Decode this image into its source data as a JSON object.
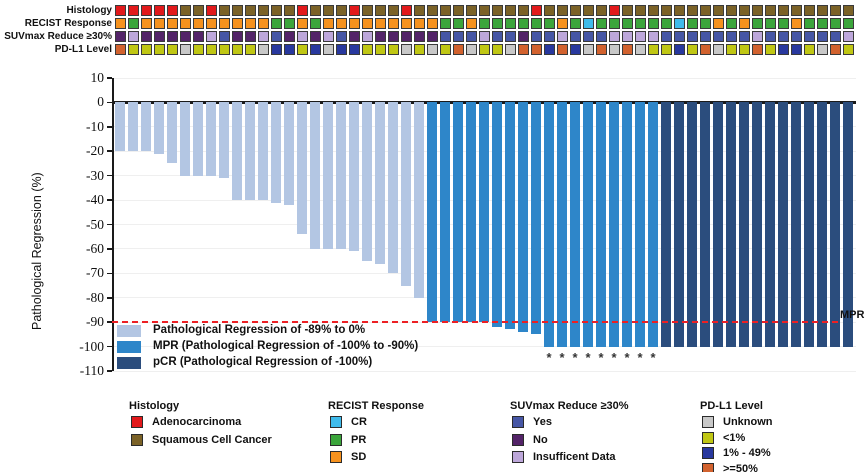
{
  "figure": {
    "axis_title": "Pathological Regression (%)",
    "mpr_label": "MPR",
    "track_labels": [
      "Histology",
      "RECIST Response",
      "SUVmax Reduce ≥30%",
      "PD-L1 Level"
    ],
    "inner_legend": [
      {
        "key": "light",
        "label": "Pathological Regression of -89% to 0%"
      },
      {
        "key": "mpr",
        "label": "MPR (Pathological Regression of -100% to -90%)"
      },
      {
        "key": "pcr",
        "label": "pCR (Pathological Regression of -100%)"
      }
    ],
    "bottom_legends": [
      {
        "title": "Histology",
        "items": [
          {
            "color": "#E2191B",
            "label": "Adenocarcinoma"
          },
          {
            "color": "#7B6227",
            "label": "Squamous Cell Cancer"
          }
        ]
      },
      {
        "title": "RECIST Response",
        "items": [
          {
            "color": "#3FBBEB",
            "label": "CR"
          },
          {
            "color": "#3BA53B",
            "label": "PR"
          },
          {
            "color": "#F6921E",
            "label": "SD"
          }
        ]
      },
      {
        "title": "SUVmax Reduce ≥30%",
        "items": [
          {
            "color": "#4656A5",
            "label": "Yes"
          },
          {
            "color": "#532368",
            "label": "No"
          },
          {
            "color": "#BDA7DA",
            "label": "Insufficent Data"
          }
        ]
      },
      {
        "title": "PD-L1 Level",
        "items": [
          {
            "color": "#C8C8C8",
            "label": "Unknown"
          },
          {
            "color": "#C0C714",
            "label": "<1%"
          },
          {
            "color": "#28389E",
            "label": "1% - 49%"
          },
          {
            "color": "#D2622E",
            "label": ">=50%"
          }
        ]
      }
    ]
  },
  "chart_data": {
    "type": "bar",
    "subtype": "waterfall",
    "title": "",
    "xlabel": "",
    "ylabel": "Pathological Regression (%)",
    "ylim": [
      -110,
      10
    ],
    "yticks": [
      10,
      0,
      -10,
      -20,
      -30,
      -40,
      -50,
      -60,
      -70,
      -80,
      -90,
      -100,
      -110
    ],
    "grid": "faint-horizontal",
    "reference_line": {
      "y": -90,
      "label": "MPR",
      "style": "red-dashed"
    },
    "asterisk_note": "asterisks mark MPR bars reaching -100%",
    "bar_colors": {
      "light": "#B3C6E3",
      "mpr": "#2E86C9",
      "pcr": "#2B4D7D"
    },
    "group_labels": {
      "light": "Pathological Regression of -89% to 0%",
      "mpr": "MPR (Pathological Regression of -100% to -90%)",
      "pcr": "pCR (Pathological Regression of -100%)"
    },
    "codes": {
      "h": {
        "A": "Adenocarcinoma",
        "S": "Squamous Cell Cancer"
      },
      "r": {
        "CR": "CR",
        "PR": "PR",
        "SD": "SD"
      },
      "s": {
        "Y": "Yes",
        "N": "No",
        "I": "Insufficent Data"
      },
      "p": {
        "U": "Unknown",
        "L": "<1%",
        "M": "1% - 49%",
        "H": ">=50%"
      }
    },
    "track_colors": {
      "h": {
        "A": "#E2191B",
        "S": "#7B6227"
      },
      "r": {
        "CR": "#3FBBEB",
        "PR": "#3BA53B",
        "SD": "#F6921E"
      },
      "s": {
        "Y": "#4656A5",
        "N": "#532368",
        "I": "#BDA7DA"
      },
      "p": {
        "U": "#C8C8C8",
        "L": "#C0C714",
        "M": "#28389E",
        "H": "#D2622E"
      }
    },
    "patients": [
      {
        "v": -20,
        "g": "light",
        "star": false,
        "h": "A",
        "r": "SD",
        "s": "N",
        "p": "H"
      },
      {
        "v": -20,
        "g": "light",
        "star": false,
        "h": "A",
        "r": "PR",
        "s": "I",
        "p": "L"
      },
      {
        "v": -20,
        "g": "light",
        "star": false,
        "h": "A",
        "r": "SD",
        "s": "N",
        "p": "L"
      },
      {
        "v": -21,
        "g": "light",
        "star": false,
        "h": "A",
        "r": "SD",
        "s": "N",
        "p": "L"
      },
      {
        "v": -25,
        "g": "light",
        "star": false,
        "h": "A",
        "r": "SD",
        "s": "N",
        "p": "L"
      },
      {
        "v": -30,
        "g": "light",
        "star": false,
        "h": "S",
        "r": "SD",
        "s": "N",
        "p": "U"
      },
      {
        "v": -30,
        "g": "light",
        "star": false,
        "h": "S",
        "r": "SD",
        "s": "N",
        "p": "L"
      },
      {
        "v": -30,
        "g": "light",
        "star": false,
        "h": "A",
        "r": "SD",
        "s": "I",
        "p": "L"
      },
      {
        "v": -31,
        "g": "light",
        "star": false,
        "h": "S",
        "r": "SD",
        "s": "Y",
        "p": "L"
      },
      {
        "v": -40,
        "g": "light",
        "star": false,
        "h": "S",
        "r": "SD",
        "s": "N",
        "p": "L"
      },
      {
        "v": -40,
        "g": "light",
        "star": false,
        "h": "S",
        "r": "SD",
        "s": "N",
        "p": "L"
      },
      {
        "v": -40,
        "g": "light",
        "star": false,
        "h": "S",
        "r": "SD",
        "s": "I",
        "p": "U"
      },
      {
        "v": -41,
        "g": "light",
        "star": false,
        "h": "S",
        "r": "PR",
        "s": "Y",
        "p": "M"
      },
      {
        "v": -42,
        "g": "light",
        "star": false,
        "h": "S",
        "r": "PR",
        "s": "N",
        "p": "M"
      },
      {
        "v": -54,
        "g": "light",
        "star": false,
        "h": "A",
        "r": "SD",
        "s": "I",
        "p": "L"
      },
      {
        "v": -60,
        "g": "light",
        "star": false,
        "h": "S",
        "r": "PR",
        "s": "N",
        "p": "M"
      },
      {
        "v": -60,
        "g": "light",
        "star": false,
        "h": "S",
        "r": "SD",
        "s": "I",
        "p": "U"
      },
      {
        "v": -60,
        "g": "light",
        "star": false,
        "h": "S",
        "r": "SD",
        "s": "Y",
        "p": "M"
      },
      {
        "v": -61,
        "g": "light",
        "star": false,
        "h": "A",
        "r": "SD",
        "s": "N",
        "p": "M"
      },
      {
        "v": -65,
        "g": "light",
        "star": false,
        "h": "S",
        "r": "SD",
        "s": "I",
        "p": "L"
      },
      {
        "v": -66,
        "g": "light",
        "star": false,
        "h": "S",
        "r": "SD",
        "s": "N",
        "p": "L"
      },
      {
        "v": -70,
        "g": "light",
        "star": false,
        "h": "S",
        "r": "SD",
        "s": "N",
        "p": "L"
      },
      {
        "v": -75,
        "g": "light",
        "star": false,
        "h": "A",
        "r": "SD",
        "s": "N",
        "p": "U"
      },
      {
        "v": -80,
        "g": "light",
        "star": false,
        "h": "S",
        "r": "SD",
        "s": "N",
        "p": "L"
      },
      {
        "v": -90,
        "g": "mpr",
        "star": false,
        "h": "S",
        "r": "SD",
        "s": "N",
        "p": "U"
      },
      {
        "v": -90,
        "g": "mpr",
        "star": false,
        "h": "S",
        "r": "PR",
        "s": "Y",
        "p": "L"
      },
      {
        "v": -90,
        "g": "mpr",
        "star": false,
        "h": "S",
        "r": "PR",
        "s": "Y",
        "p": "H"
      },
      {
        "v": -90,
        "g": "mpr",
        "star": false,
        "h": "S",
        "r": "SD",
        "s": "Y",
        "p": "U"
      },
      {
        "v": -90,
        "g": "mpr",
        "star": false,
        "h": "S",
        "r": "PR",
        "s": "I",
        "p": "L"
      },
      {
        "v": -92,
        "g": "mpr",
        "star": false,
        "h": "S",
        "r": "PR",
        "s": "Y",
        "p": "L"
      },
      {
        "v": -93,
        "g": "mpr",
        "star": false,
        "h": "S",
        "r": "PR",
        "s": "Y",
        "p": "U"
      },
      {
        "v": -94,
        "g": "mpr",
        "star": false,
        "h": "S",
        "r": "PR",
        "s": "N",
        "p": "H"
      },
      {
        "v": -95,
        "g": "mpr",
        "star": false,
        "h": "A",
        "r": "PR",
        "s": "Y",
        "p": "H"
      },
      {
        "v": -100,
        "g": "mpr",
        "star": true,
        "h": "S",
        "r": "PR",
        "s": "Y",
        "p": "M"
      },
      {
        "v": -100,
        "g": "mpr",
        "star": true,
        "h": "S",
        "r": "SD",
        "s": "I",
        "p": "H"
      },
      {
        "v": -100,
        "g": "mpr",
        "star": true,
        "h": "S",
        "r": "PR",
        "s": "Y",
        "p": "M"
      },
      {
        "v": -100,
        "g": "mpr",
        "star": true,
        "h": "S",
        "r": "CR",
        "s": "Y",
        "p": "U"
      },
      {
        "v": -100,
        "g": "mpr",
        "star": true,
        "h": "S",
        "r": "PR",
        "s": "Y",
        "p": "H"
      },
      {
        "v": -100,
        "g": "mpr",
        "star": true,
        "h": "A",
        "r": "PR",
        "s": "I",
        "p": "U"
      },
      {
        "v": -100,
        "g": "mpr",
        "star": true,
        "h": "S",
        "r": "PR",
        "s": "I",
        "p": "H"
      },
      {
        "v": -100,
        "g": "mpr",
        "star": true,
        "h": "S",
        "r": "PR",
        "s": "I",
        "p": "U"
      },
      {
        "v": -100,
        "g": "mpr",
        "star": true,
        "h": "S",
        "r": "PR",
        "s": "I",
        "p": "L"
      },
      {
        "v": -100,
        "g": "pcr",
        "star": false,
        "h": "S",
        "r": "PR",
        "s": "Y",
        "p": "L"
      },
      {
        "v": -100,
        "g": "pcr",
        "star": false,
        "h": "S",
        "r": "CR",
        "s": "Y",
        "p": "M"
      },
      {
        "v": -100,
        "g": "pcr",
        "star": false,
        "h": "S",
        "r": "PR",
        "s": "Y",
        "p": "L"
      },
      {
        "v": -100,
        "g": "pcr",
        "star": false,
        "h": "S",
        "r": "PR",
        "s": "Y",
        "p": "H"
      },
      {
        "v": -100,
        "g": "pcr",
        "star": false,
        "h": "S",
        "r": "SD",
        "s": "Y",
        "p": "U"
      },
      {
        "v": -100,
        "g": "pcr",
        "star": false,
        "h": "S",
        "r": "PR",
        "s": "Y",
        "p": "L"
      },
      {
        "v": -100,
        "g": "pcr",
        "star": false,
        "h": "S",
        "r": "SD",
        "s": "Y",
        "p": "L"
      },
      {
        "v": -100,
        "g": "pcr",
        "star": false,
        "h": "S",
        "r": "PR",
        "s": "I",
        "p": "H"
      },
      {
        "v": -100,
        "g": "pcr",
        "star": false,
        "h": "S",
        "r": "PR",
        "s": "Y",
        "p": "L"
      },
      {
        "v": -100,
        "g": "pcr",
        "star": false,
        "h": "S",
        "r": "PR",
        "s": "Y",
        "p": "M"
      },
      {
        "v": -100,
        "g": "pcr",
        "star": false,
        "h": "S",
        "r": "SD",
        "s": "Y",
        "p": "M"
      },
      {
        "v": -100,
        "g": "pcr",
        "star": false,
        "h": "S",
        "r": "PR",
        "s": "Y",
        "p": "L"
      },
      {
        "v": -100,
        "g": "pcr",
        "star": false,
        "h": "S",
        "r": "PR",
        "s": "Y",
        "p": "U"
      },
      {
        "v": -100,
        "g": "pcr",
        "star": false,
        "h": "S",
        "r": "PR",
        "s": "Y",
        "p": "H"
      },
      {
        "v": -100,
        "g": "pcr",
        "star": false,
        "h": "S",
        "r": "PR",
        "s": "I",
        "p": "L"
      }
    ]
  }
}
